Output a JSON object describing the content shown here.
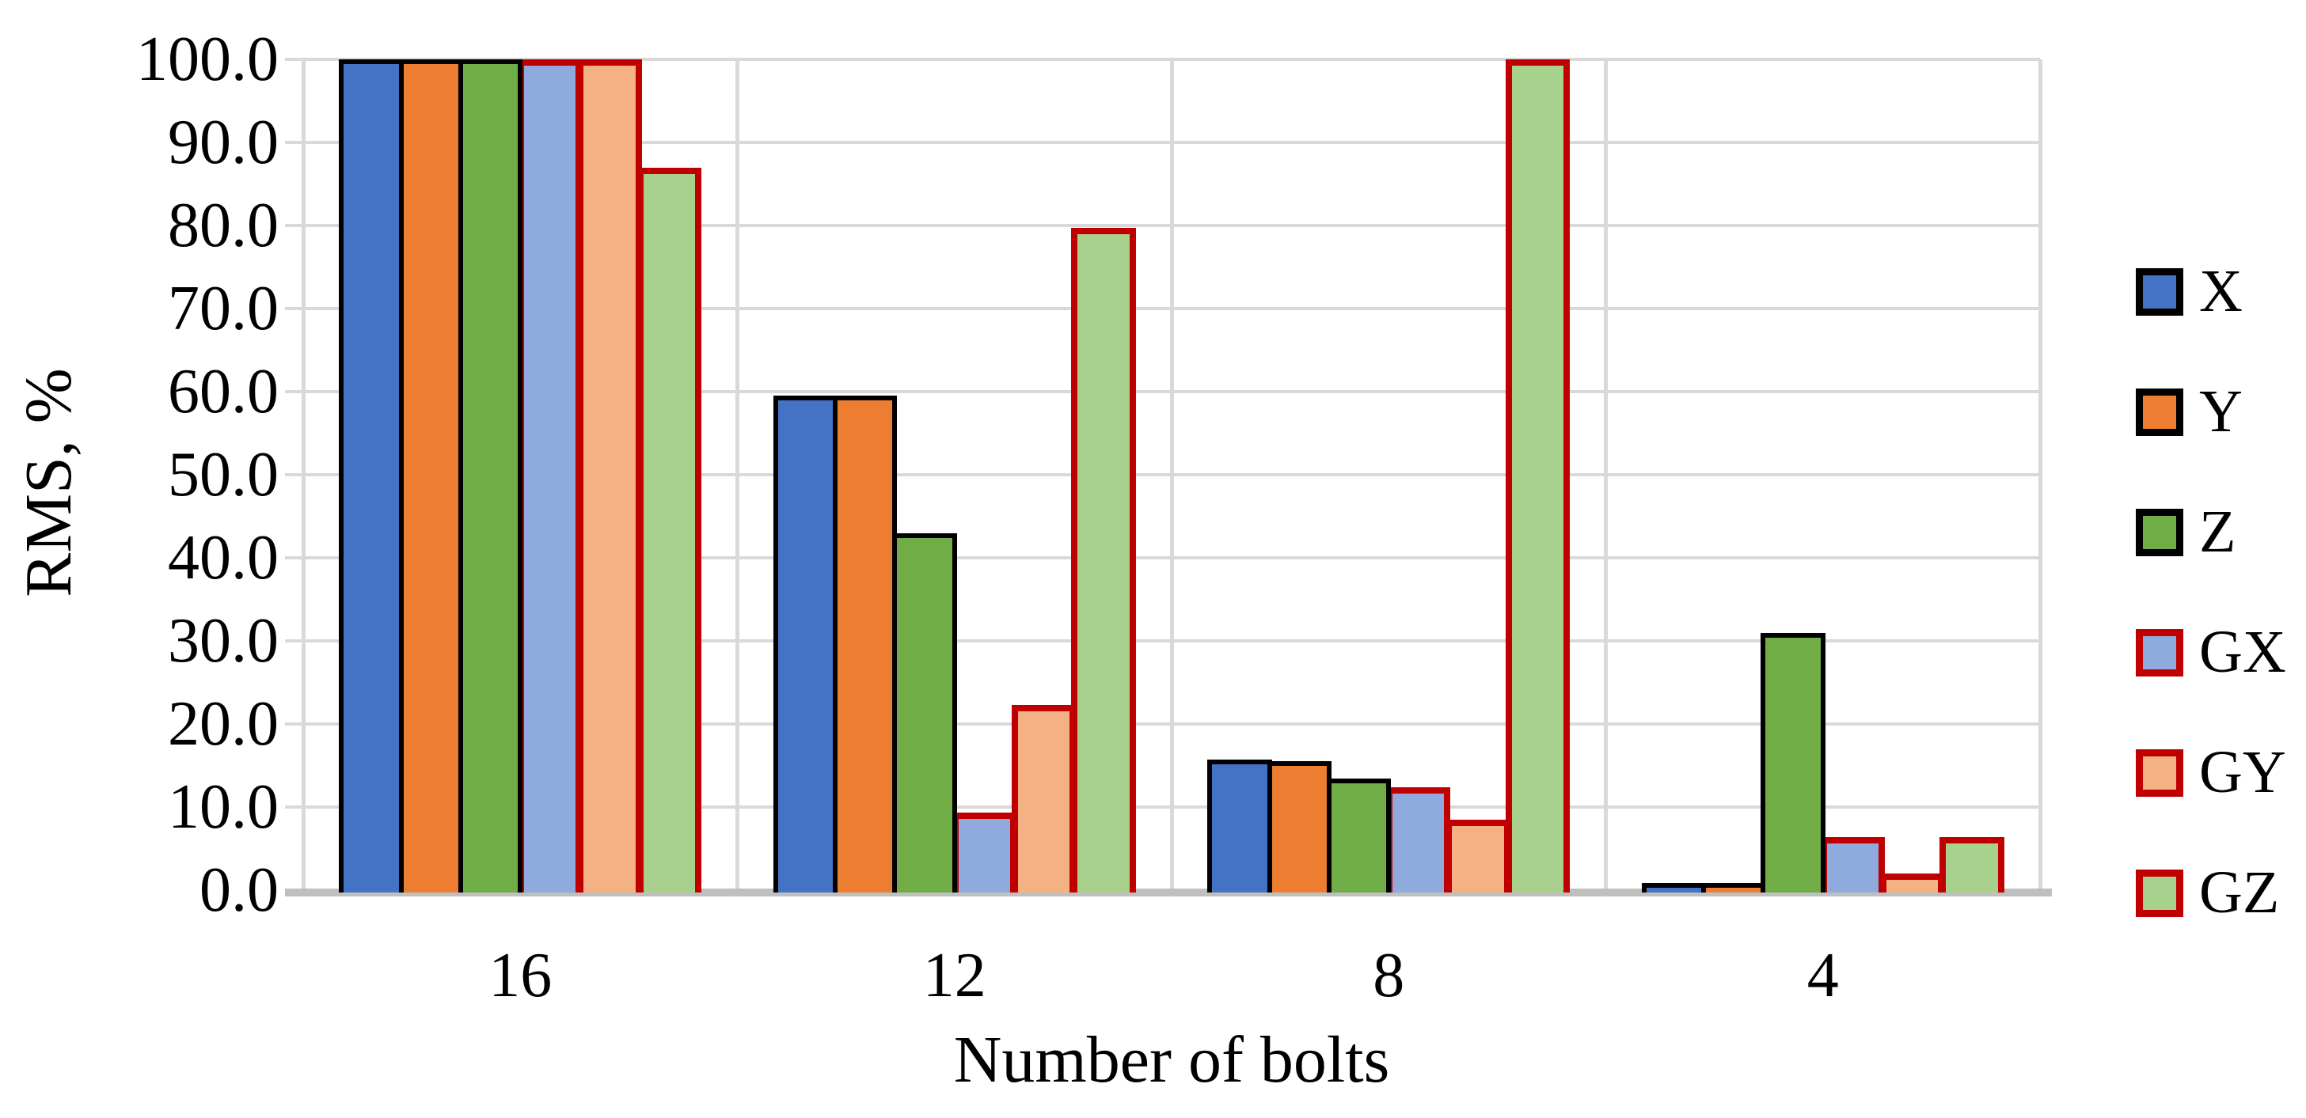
{
  "chart_data": {
    "type": "bar",
    "title": "",
    "xlabel": "Number of bolts",
    "ylabel": "RMS, %",
    "categories": [
      "16",
      "12",
      "8",
      "4"
    ],
    "series": [
      {
        "name": "X",
        "fill": "#4472C4",
        "border": "#000000",
        "values": [
          100,
          59.5,
          15.7,
          0.9
        ]
      },
      {
        "name": "Y",
        "fill": "#ED7D31",
        "border": "#000000",
        "values": [
          100,
          59.5,
          15.5,
          0.9
        ]
      },
      {
        "name": "Z",
        "fill": "#70AD47",
        "border": "#000000",
        "values": [
          100,
          43.0,
          13.4,
          31.0
        ]
      },
      {
        "name": "GX",
        "fill": "#8FAADC",
        "border": "#C00000",
        "values": [
          100,
          9.3,
          12.4,
          6.4
        ]
      },
      {
        "name": "GY",
        "fill": "#F4B183",
        "border": "#C00000",
        "values": [
          100,
          22.3,
          8.5,
          2.0
        ]
      },
      {
        "name": "GZ",
        "fill": "#A9D18E",
        "border": "#C00000",
        "values": [
          87.0,
          79.7,
          100,
          6.4
        ]
      }
    ],
    "ylim": [
      0,
      100
    ],
    "ytick_step": 10,
    "yticks": [
      "100.0",
      "90.0",
      "80.0",
      "70.0",
      "60.0",
      "50.0",
      "40.0",
      "30.0",
      "20.0",
      "10.0",
      "0.0"
    ],
    "grid": true,
    "legend_position": "right",
    "colors": {
      "gridline": "#D9D9D9",
      "axis_line": "#BFBFBF",
      "background": "#FFFFFF"
    }
  }
}
